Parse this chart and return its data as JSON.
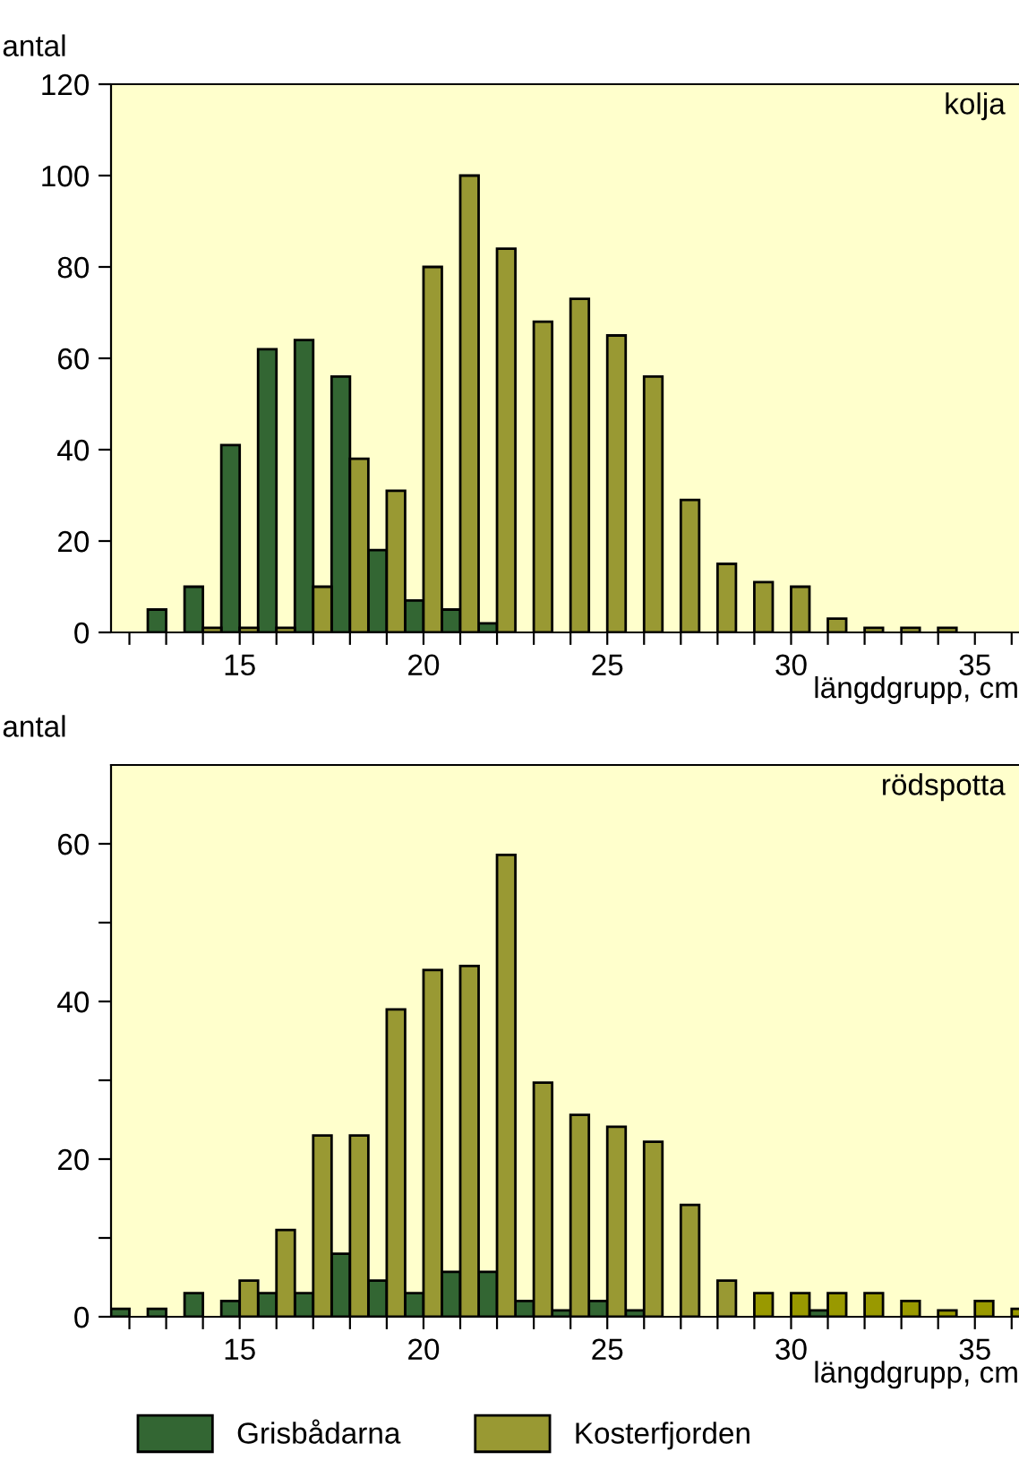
{
  "chart_data": [
    {
      "type": "bar",
      "title": "kolja",
      "xlabel": "längdgrupp, cm",
      "ylabel": "antal",
      "xlim": [
        11.5,
        36.2
      ],
      "ylim": [
        0,
        120
      ],
      "xticks": [
        {
          "value": 12,
          "label": null
        },
        {
          "value": 13,
          "label": null
        },
        {
          "value": 14,
          "label": null
        },
        15,
        {
          "value": 16,
          "label": null
        },
        {
          "value": 17,
          "label": null
        },
        {
          "value": 18,
          "label": null
        },
        {
          "value": 19,
          "label": null
        },
        20,
        {
          "value": 21,
          "label": null
        },
        {
          "value": 22,
          "label": null
        },
        {
          "value": 23,
          "label": null
        },
        {
          "value": 24,
          "label": null
        },
        25,
        {
          "value": 26,
          "label": null
        },
        {
          "value": 27,
          "label": null
        },
        {
          "value": 28,
          "label": null
        },
        {
          "value": 29,
          "label": null
        },
        30,
        {
          "value": 31,
          "label": null
        },
        {
          "value": 32,
          "label": null
        },
        {
          "value": 33,
          "label": null
        },
        {
          "value": 34,
          "label": null
        },
        35,
        {
          "value": 36,
          "label": null
        }
      ],
      "yticks": [
        0,
        20,
        40,
        60,
        80,
        100,
        120
      ],
      "grid": false,
      "legend": "bottom",
      "series": [
        {
          "name": "Grisbådarna",
          "color": "#336633",
          "x": [
            13,
            14,
            15,
            16,
            17,
            18,
            19,
            20,
            21,
            22
          ],
          "values": [
            5,
            10,
            41,
            62,
            64,
            56,
            18,
            7,
            5,
            2
          ]
        },
        {
          "name": "Kosterfjorden",
          "color": "#999933",
          "x": [
            14,
            15,
            16,
            17,
            18,
            19,
            20,
            21,
            22,
            23,
            24,
            25,
            26,
            27,
            28,
            29,
            30,
            31,
            32,
            33,
            34
          ],
          "values": [
            1,
            1,
            1,
            10,
            38,
            31,
            80,
            100,
            84,
            68,
            73,
            65,
            56,
            29,
            15,
            11,
            10,
            3,
            1,
            1,
            1
          ]
        }
      ]
    },
    {
      "type": "bar",
      "title": "rödspotta",
      "xlabel": "längdgrupp, cm",
      "ylabel": "antal",
      "xlim": [
        11.5,
        36.2
      ],
      "ylim": [
        0,
        70
      ],
      "xticks": [
        {
          "value": 12,
          "label": null
        },
        {
          "value": 13,
          "label": null
        },
        {
          "value": 14,
          "label": null
        },
        15,
        {
          "value": 16,
          "label": null
        },
        {
          "value": 17,
          "label": null
        },
        {
          "value": 18,
          "label": null
        },
        {
          "value": 19,
          "label": null
        },
        20,
        {
          "value": 21,
          "label": null
        },
        {
          "value": 22,
          "label": null
        },
        {
          "value": 23,
          "label": null
        },
        {
          "value": 24,
          "label": null
        },
        25,
        {
          "value": 26,
          "label": null
        },
        {
          "value": 27,
          "label": null
        },
        {
          "value": 28,
          "label": null
        },
        {
          "value": 29,
          "label": null
        },
        30,
        {
          "value": 31,
          "label": null
        },
        {
          "value": 32,
          "label": null
        },
        {
          "value": 33,
          "label": null
        },
        {
          "value": 34,
          "label": null
        },
        35,
        {
          "value": 36,
          "label": null
        }
      ],
      "yticks": [
        0,
        {
          "value": 10,
          "label": null
        },
        20,
        {
          "value": 30,
          "label": null
        },
        40,
        {
          "value": 50,
          "label": null
        },
        60
      ],
      "grid": false,
      "legend": "bottom",
      "series": [
        {
          "name": "Grisbådarna",
          "color": "#336633",
          "x": [
            12,
            13,
            14,
            15,
            16,
            17,
            18,
            19,
            20,
            21,
            22,
            23,
            24,
            25,
            26,
            31
          ],
          "values": [
            1,
            1,
            3,
            2,
            3,
            3,
            8,
            4.6,
            3,
            5.7,
            5.7,
            2,
            0.8,
            2,
            0.8,
            0.8
          ]
        },
        {
          "name": "Kosterfjorden",
          "color": "#999933",
          "x": [
            15,
            16,
            17,
            18,
            19,
            20,
            21,
            22,
            23,
            24,
            25,
            26,
            27,
            28,
            29,
            30,
            31,
            32,
            33,
            34,
            35,
            36
          ],
          "values": [
            4.6,
            11,
            23,
            23,
            39,
            44,
            44.5,
            58.6,
            29.7,
            25.6,
            24.1,
            22.2,
            14.2,
            4.6,
            3,
            3,
            3,
            3,
            2,
            0.8,
            2,
            1
          ],
          "colors": [
            "#999933",
            "#999933",
            "#999933",
            "#999933",
            "#999933",
            "#999933",
            "#999933",
            "#999933",
            "#999933",
            "#999933",
            "#999933",
            "#999933",
            "#999933",
            "#999933",
            "#999900",
            "#999900",
            "#999900",
            "#999900",
            "#999900",
            "#999900",
            "#999900",
            "#999900"
          ]
        }
      ]
    }
  ]
}
